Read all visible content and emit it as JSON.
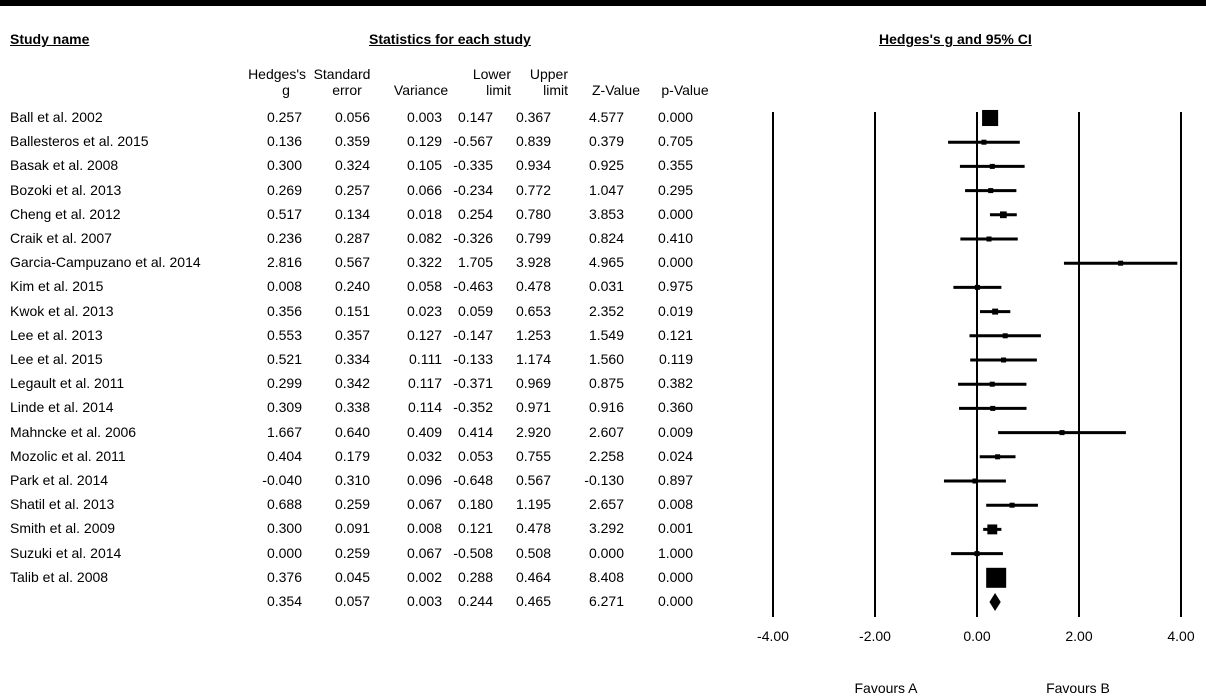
{
  "headers": {
    "study_name": "Study name",
    "statistics": "Statistics for each study",
    "plot_title": "Hedges's g and 95% CI"
  },
  "columns": {
    "hedges": [
      "Hedges's",
      "g"
    ],
    "se": [
      "Standard",
      "error"
    ],
    "variance": [
      "",
      "Variance"
    ],
    "lower": [
      "Lower",
      "limit"
    ],
    "upper": [
      "Upper",
      "limit"
    ],
    "z": [
      "",
      "Z-Value"
    ],
    "p": [
      "",
      "p-Value"
    ]
  },
  "studies": [
    {
      "name": "Ball et al. 2002",
      "g": "0.257",
      "se": "0.056",
      "var": "0.003",
      "lower": "0.147",
      "upper": "0.367",
      "z": "4.577",
      "p": "0.000"
    },
    {
      "name": "Ballesteros et al. 2015",
      "g": "0.136",
      "se": "0.359",
      "var": "0.129",
      "lower": "-0.567",
      "upper": "0.839",
      "z": "0.379",
      "p": "0.705"
    },
    {
      "name": "Basak et al. 2008",
      "g": "0.300",
      "se": "0.324",
      "var": "0.105",
      "lower": "-0.335",
      "upper": "0.934",
      "z": "0.925",
      "p": "0.355"
    },
    {
      "name": "Bozoki et al. 2013",
      "g": "0.269",
      "se": "0.257",
      "var": "0.066",
      "lower": "-0.234",
      "upper": "0.772",
      "z": "1.047",
      "p": "0.295"
    },
    {
      "name": "Cheng et al. 2012",
      "g": "0.517",
      "se": "0.134",
      "var": "0.018",
      "lower": "0.254",
      "upper": "0.780",
      "z": "3.853",
      "p": "0.000"
    },
    {
      "name": "Craik et al. 2007",
      "g": "0.236",
      "se": "0.287",
      "var": "0.082",
      "lower": "-0.326",
      "upper": "0.799",
      "z": "0.824",
      "p": "0.410"
    },
    {
      "name": "Garcia-Campuzano et al. 2014",
      "g": "2.816",
      "se": "0.567",
      "var": "0.322",
      "lower": "1.705",
      "upper": "3.928",
      "z": "4.965",
      "p": "0.000"
    },
    {
      "name": "Kim et al. 2015",
      "g": "0.008",
      "se": "0.240",
      "var": "0.058",
      "lower": "-0.463",
      "upper": "0.478",
      "z": "0.031",
      "p": "0.975"
    },
    {
      "name": "Kwok et al. 2013",
      "g": "0.356",
      "se": "0.151",
      "var": "0.023",
      "lower": "0.059",
      "upper": "0.653",
      "z": "2.352",
      "p": "0.019"
    },
    {
      "name": "Lee et al. 2013",
      "g": "0.553",
      "se": "0.357",
      "var": "0.127",
      "lower": "-0.147",
      "upper": "1.253",
      "z": "1.549",
      "p": "0.121"
    },
    {
      "name": "Lee et al. 2015",
      "g": "0.521",
      "se": "0.334",
      "var": "0.111",
      "lower": "-0.133",
      "upper": "1.174",
      "z": "1.560",
      "p": "0.119"
    },
    {
      "name": "Legault et al. 2011",
      "g": "0.299",
      "se": "0.342",
      "var": "0.117",
      "lower": "-0.371",
      "upper": "0.969",
      "z": "0.875",
      "p": "0.382"
    },
    {
      "name": "Linde et al. 2014",
      "g": "0.309",
      "se": "0.338",
      "var": "0.114",
      "lower": "-0.352",
      "upper": "0.971",
      "z": "0.916",
      "p": "0.360"
    },
    {
      "name": "Mahncke et al. 2006",
      "g": "1.667",
      "se": "0.640",
      "var": "0.409",
      "lower": "0.414",
      "upper": "2.920",
      "z": "2.607",
      "p": "0.009"
    },
    {
      "name": "Mozolic et al. 2011",
      "g": "0.404",
      "se": "0.179",
      "var": "0.032",
      "lower": "0.053",
      "upper": "0.755",
      "z": "2.258",
      "p": "0.024"
    },
    {
      "name": "Park et al. 2014",
      "g": "-0.040",
      "se": "0.310",
      "var": "0.096",
      "lower": "-0.648",
      "upper": "0.567",
      "z": "-0.130",
      "p": "0.897"
    },
    {
      "name": "Shatil et al. 2013",
      "g": "0.688",
      "se": "0.259",
      "var": "0.067",
      "lower": "0.180",
      "upper": "1.195",
      "z": "2.657",
      "p": "0.008"
    },
    {
      "name": "Smith et al. 2009",
      "g": "0.300",
      "se": "0.091",
      "var": "0.008",
      "lower": "0.121",
      "upper": "0.478",
      "z": "3.292",
      "p": "0.001"
    },
    {
      "name": "Suzuki et al. 2014",
      "g": "0.000",
      "se": "0.259",
      "var": "0.067",
      "lower": "-0.508",
      "upper": "0.508",
      "z": "0.000",
      "p": "1.000"
    },
    {
      "name": "Talib et al. 2008",
      "g": "0.376",
      "se": "0.045",
      "var": "0.002",
      "lower": "0.288",
      "upper": "0.464",
      "z": "8.408",
      "p": "0.000"
    }
  ],
  "summary": {
    "name": "",
    "g": "0.354",
    "se": "0.057",
    "var": "0.003",
    "lower": "0.244",
    "upper": "0.465",
    "z": "6.271",
    "p": "0.000"
  },
  "chart_data": {
    "type": "scatter",
    "subtype": "forest-plot",
    "title": "Hedges's g and 95% CI",
    "xlim": [
      -4,
      4
    ],
    "x_ticks": [
      "-4.00",
      "-2.00",
      "0.00",
      "2.00",
      "4.00"
    ],
    "favours_left": "Favours A",
    "favours_right": "Favours B",
    "series": [
      {
        "name": "",
        "points": [
          {
            "label": "Ball et al. 2002",
            "g": 0.257,
            "lower": 0.147,
            "upper": 0.367,
            "se": 0.056
          },
          {
            "label": "Ballesteros et al. 2015",
            "g": 0.136,
            "lower": -0.567,
            "upper": 0.839,
            "se": 0.359
          },
          {
            "label": "Basak et al. 2008",
            "g": 0.3,
            "lower": -0.335,
            "upper": 0.934,
            "se": 0.324
          },
          {
            "label": "Bozoki et al. 2013",
            "g": 0.269,
            "lower": -0.234,
            "upper": 0.772,
            "se": 0.257
          },
          {
            "label": "Cheng et al. 2012",
            "g": 0.517,
            "lower": 0.254,
            "upper": 0.78,
            "se": 0.134
          },
          {
            "label": "Craik et al. 2007",
            "g": 0.236,
            "lower": -0.326,
            "upper": 0.799,
            "se": 0.287
          },
          {
            "label": "Garcia-Campuzano et al. 2014",
            "g": 2.816,
            "lower": 1.705,
            "upper": 3.928,
            "se": 0.567
          },
          {
            "label": "Kim et al. 2015",
            "g": 0.008,
            "lower": -0.463,
            "upper": 0.478,
            "se": 0.24
          },
          {
            "label": "Kwok et al. 2013",
            "g": 0.356,
            "lower": 0.059,
            "upper": 0.653,
            "se": 0.151
          },
          {
            "label": "Lee et al. 2013",
            "g": 0.553,
            "lower": -0.147,
            "upper": 1.253,
            "se": 0.357
          },
          {
            "label": "Lee et al. 2015",
            "g": 0.521,
            "lower": -0.133,
            "upper": 1.174,
            "se": 0.334
          },
          {
            "label": "Legault et al. 2011",
            "g": 0.299,
            "lower": -0.371,
            "upper": 0.969,
            "se": 0.342
          },
          {
            "label": "Linde et al. 2014",
            "g": 0.309,
            "lower": -0.352,
            "upper": 0.971,
            "se": 0.338
          },
          {
            "label": "Mahncke et al. 2006",
            "g": 1.667,
            "lower": 0.414,
            "upper": 2.92,
            "se": 0.64
          },
          {
            "label": "Mozolic et al. 2011",
            "g": 0.404,
            "lower": 0.053,
            "upper": 0.755,
            "se": 0.179
          },
          {
            "label": "Park et al. 2014",
            "g": -0.04,
            "lower": -0.648,
            "upper": 0.567,
            "se": 0.31
          },
          {
            "label": "Shatil et al. 2013",
            "g": 0.688,
            "lower": 0.18,
            "upper": 1.195,
            "se": 0.259
          },
          {
            "label": "Smith et al. 2009",
            "g": 0.3,
            "lower": 0.121,
            "upper": 0.478,
            "se": 0.091
          },
          {
            "label": "Suzuki et al. 2014",
            "g": 0.0,
            "lower": -0.508,
            "upper": 0.508,
            "se": 0.259
          },
          {
            "label": "Talib et al. 2008",
            "g": 0.376,
            "lower": 0.288,
            "upper": 0.464,
            "se": 0.045
          }
        ]
      }
    ],
    "summary": {
      "g": 0.354,
      "lower": 0.244,
      "upper": 0.465
    }
  }
}
